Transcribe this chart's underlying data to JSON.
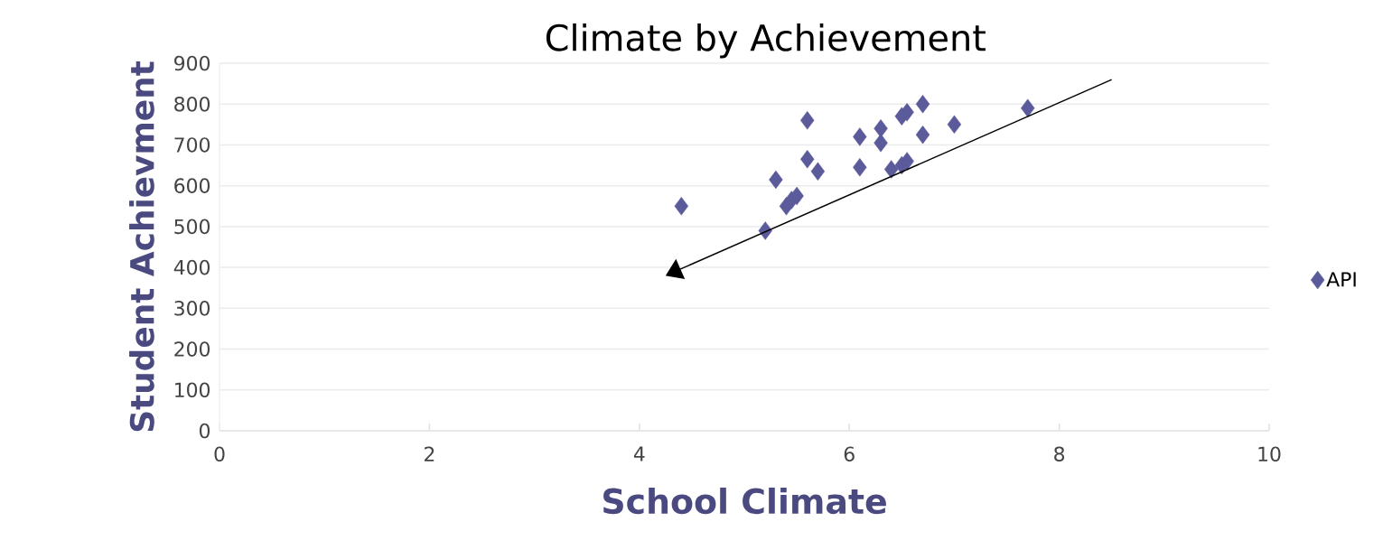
{
  "chart_data": {
    "type": "scatter",
    "title": "Climate by Achievement",
    "xlabel": "School Climate",
    "ylabel": "Student Achievment",
    "xlim": [
      0,
      10
    ],
    "xticks": [
      0,
      2,
      4,
      6,
      8,
      10
    ],
    "ylim": [
      0,
      900
    ],
    "yticks": [
      0,
      100,
      200,
      300,
      400,
      500,
      600,
      700,
      800,
      900
    ],
    "grid": "y",
    "legend": "right",
    "marker": "diamond",
    "series": [
      {
        "name": "API",
        "color": "#5b5b9b",
        "x": [
          4.4,
          5.2,
          5.3,
          5.4,
          5.45,
          5.5,
          5.6,
          5.6,
          5.7,
          6.1,
          6.1,
          6.3,
          6.3,
          6.4,
          6.5,
          6.55,
          6.5,
          6.55,
          6.7,
          6.7,
          7.0,
          7.7
        ],
        "values": [
          550,
          490,
          615,
          550,
          565,
          575,
          760,
          665,
          635,
          720,
          645,
          740,
          705,
          640,
          650,
          660,
          770,
          780,
          800,
          725,
          750,
          790
        ]
      }
    ]
  }
}
